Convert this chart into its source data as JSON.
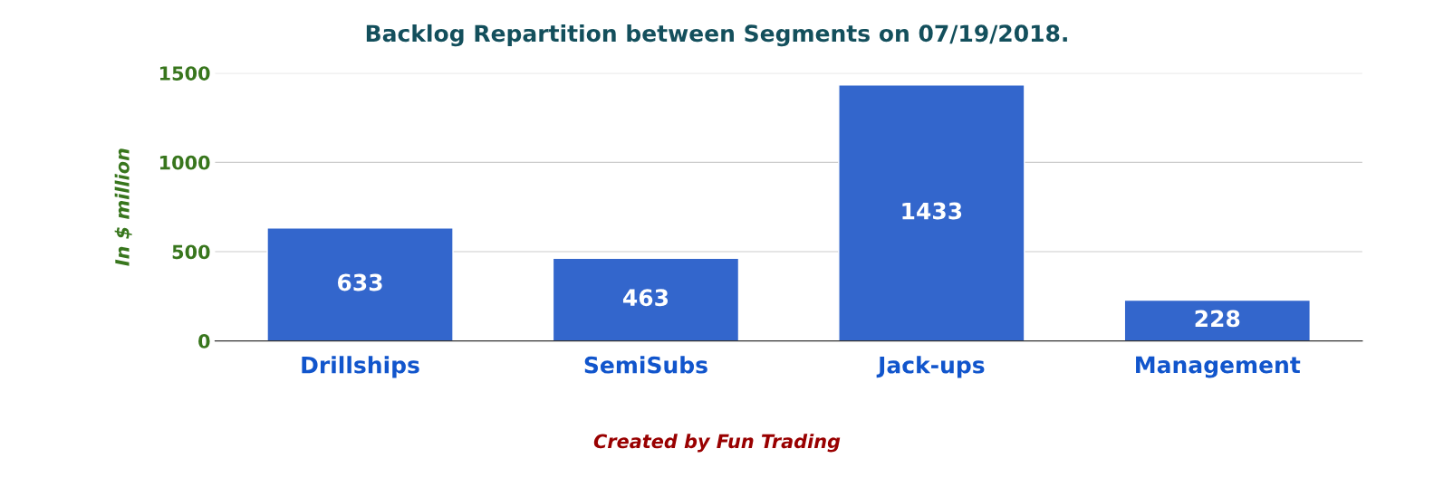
{
  "chart_data": {
    "type": "bar",
    "title": "Backlog Repartition between Segments on 07/19/2018.",
    "ylabel": "In $ million",
    "categories": [
      "Drillships",
      "SemiSubs",
      "Jack-ups",
      "Management"
    ],
    "values": [
      633,
      463,
      1433,
      228
    ],
    "color": "#3366cc",
    "ylim": [
      0,
      1500
    ],
    "yticks": [
      0,
      500,
      1000,
      1500
    ],
    "grid": "y",
    "data_labels": true,
    "annotations": [
      "Created by Fun Trading"
    ]
  }
}
